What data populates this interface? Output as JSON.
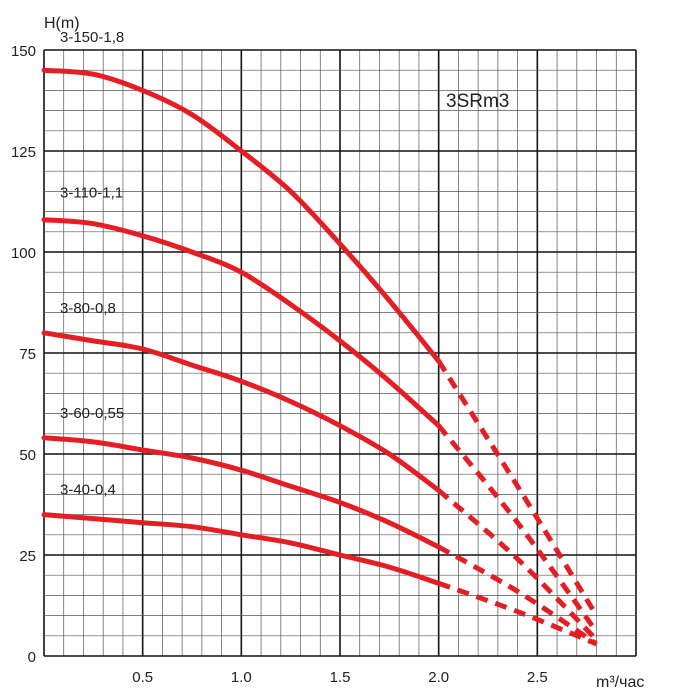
{
  "chart_data": {
    "type": "line",
    "title": "3SRm3",
    "xlabel": "m³/час",
    "ylabel": "H(m)",
    "xlim": [
      0,
      3.0
    ],
    "ylim": [
      0,
      150
    ],
    "x_ticks": [
      "0.5",
      "1.0",
      "1.5",
      "2.0",
      "2.5"
    ],
    "x_tick_values": [
      0.5,
      1.0,
      1.5,
      2.0,
      2.5
    ],
    "y_ticks": [
      "0",
      "25",
      "50",
      "75",
      "100",
      "125",
      "150"
    ],
    "y_tick_values": [
      0,
      25,
      50,
      75,
      100,
      125,
      150
    ],
    "solid_until_x": 2.0,
    "curve_color": "#e31e24",
    "series": [
      {
        "name": "3-150-1,8",
        "x": [
          0,
          0.25,
          0.5,
          0.75,
          1.0,
          1.25,
          1.5,
          1.75,
          2.0,
          2.4,
          2.8
        ],
        "values": [
          145,
          144,
          140,
          134,
          125,
          115,
          102,
          88,
          73,
          42,
          10
        ]
      },
      {
        "name": "3-110-1,1",
        "x": [
          0,
          0.25,
          0.5,
          0.75,
          1.0,
          1.25,
          1.5,
          1.75,
          2.0,
          2.4,
          2.8
        ],
        "values": [
          108,
          107,
          104,
          100,
          95,
          87,
          78,
          68,
          57,
          33,
          6
        ]
      },
      {
        "name": "3-80-0,8",
        "x": [
          0,
          0.25,
          0.5,
          0.75,
          1.0,
          1.25,
          1.5,
          1.75,
          2.0,
          2.4,
          2.8
        ],
        "values": [
          80,
          78,
          76,
          72,
          68,
          63,
          57,
          50,
          41,
          24,
          4
        ]
      },
      {
        "name": "3-60-0,55",
        "x": [
          0,
          0.25,
          0.5,
          0.75,
          1.0,
          1.25,
          1.5,
          1.75,
          2.0,
          2.4,
          2.8
        ],
        "values": [
          54,
          53,
          51,
          49,
          46,
          42,
          38,
          33,
          27,
          16,
          3
        ]
      },
      {
        "name": "3-40-0,4",
        "x": [
          0,
          0.25,
          0.5,
          0.75,
          1.0,
          1.25,
          1.5,
          1.75,
          2.0,
          2.4,
          2.8
        ],
        "values": [
          35,
          34,
          33,
          32,
          30,
          28,
          25,
          22,
          18,
          11,
          3
        ]
      }
    ]
  }
}
